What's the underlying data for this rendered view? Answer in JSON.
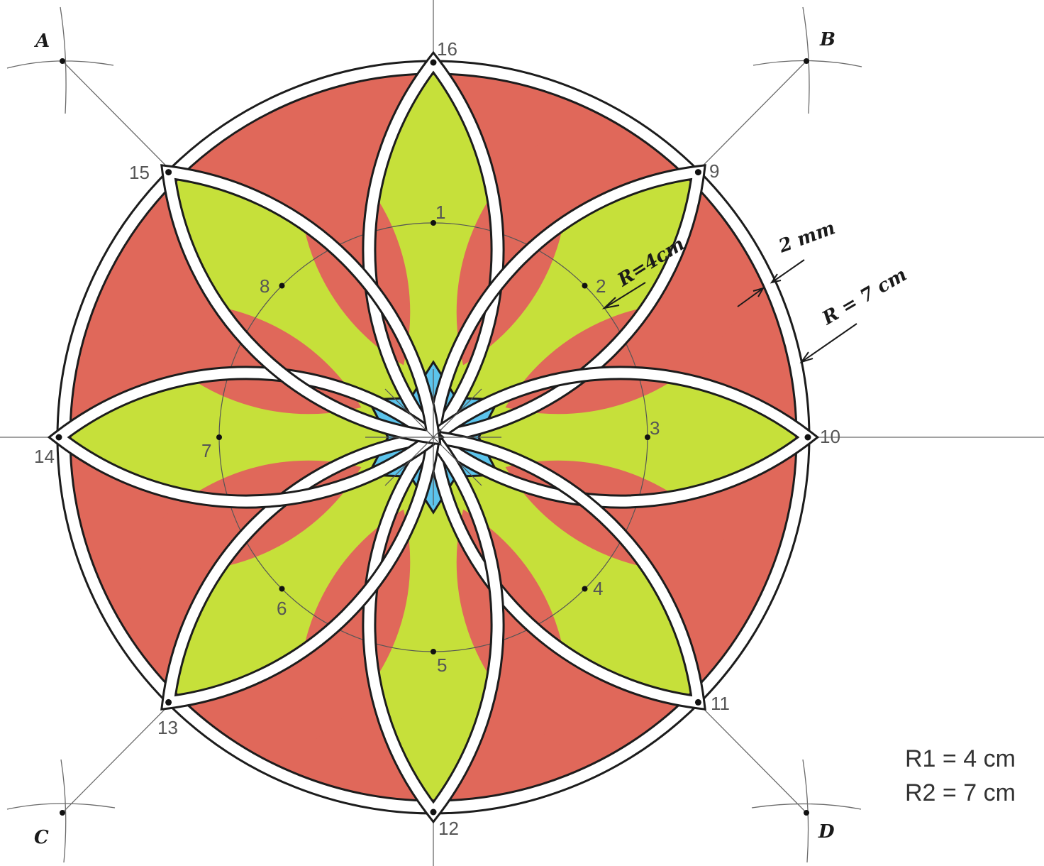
{
  "colors": {
    "petal": "#c6e03a",
    "background": "#e0685a",
    "center_star": "#5cc4ec",
    "outline": "#1c1c1c",
    "construction": "#6a6a6a"
  },
  "corner_labels": [
    "A",
    "B",
    "C",
    "D"
  ],
  "point_labels": [
    "1",
    "2",
    "3",
    "4",
    "5",
    "6",
    "7",
    "8",
    "9",
    "10",
    "11",
    "12",
    "13",
    "14",
    "15",
    "16"
  ],
  "annotations": {
    "inner_radius": "R=4cm",
    "gap": "2 mm",
    "outer_radius": "R = 7 cm"
  },
  "legend": {
    "r1": "R1 = 4 cm",
    "r2": "R2 = 7 cm"
  }
}
